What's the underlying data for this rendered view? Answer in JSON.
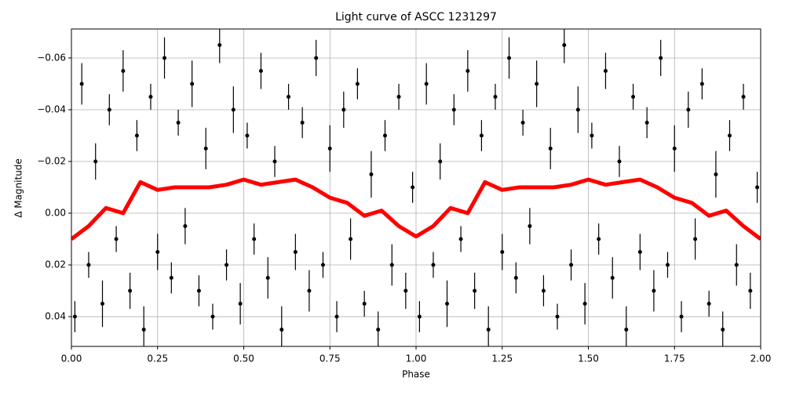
{
  "chart_data": {
    "type": "scatter",
    "title": "Light curve of ASCC 1231297",
    "xlabel": "Phase",
    "ylabel": "Δ Magnitude",
    "xlim": [
      0,
      2
    ],
    "ylim": [
      0.0515,
      -0.0712
    ],
    "inverted_y": true,
    "grid": true,
    "xticks": [
      {
        "value": 0,
        "label": "0.00"
      },
      0.25,
      {
        "value": 0.5,
        "label": "0.50"
      },
      0.75,
      {
        "value": 1,
        "label": "1.00"
      },
      1.25,
      {
        "value": 1.5,
        "label": "1.50"
      },
      1.75,
      {
        "value": 2,
        "label": "2.00"
      }
    ],
    "yticks": [
      {
        "value": -0.06,
        "label": "−0.06"
      },
      {
        "value": -0.04,
        "label": "−0.04"
      },
      {
        "value": -0.02,
        "label": "−0.02"
      },
      {
        "value": 0,
        "label": "0.00"
      },
      0.02,
      0.04
    ],
    "series": [
      {
        "color": "#000000",
        "x": [
          0.01,
          0.03,
          0.05,
          0.07,
          0.09,
          0.11,
          0.13,
          0.15,
          0.17,
          0.19,
          0.21,
          0.23,
          0.25,
          0.27,
          0.29,
          0.31,
          0.33,
          0.35,
          0.37,
          0.39,
          0.41,
          0.43,
          0.45,
          0.47,
          0.49,
          0.51,
          0.53,
          0.55,
          0.57,
          0.59,
          0.61,
          0.63,
          0.65,
          0.67,
          0.69,
          0.71,
          0.73,
          0.75,
          0.77,
          0.79,
          0.81,
          0.83,
          0.85,
          0.87,
          0.89,
          0.91,
          0.93,
          0.95,
          0.97,
          0.99,
          1.01,
          1.03,
          1.05,
          1.07,
          1.09,
          1.11,
          1.13,
          1.15,
          1.17,
          1.19,
          1.21,
          1.23,
          1.25,
          1.27,
          1.29,
          1.31,
          1.33,
          1.35,
          1.37,
          1.39,
          1.41,
          1.43,
          1.45,
          1.47,
          1.49,
          1.51,
          1.53,
          1.55,
          1.57,
          1.59,
          1.61,
          1.63,
          1.65,
          1.67,
          1.69,
          1.71,
          1.73,
          1.75,
          1.77,
          1.79,
          1.81,
          1.83,
          1.85,
          1.87,
          1.89,
          1.91,
          1.93,
          1.95,
          1.97,
          1.99
        ],
        "values": [
          0.04,
          -0.05,
          0.02,
          -0.02,
          0.035,
          -0.04,
          0.01,
          -0.055,
          0.03,
          -0.03,
          0.045,
          -0.045,
          0.015,
          -0.06,
          0.025,
          -0.035,
          0.005,
          -0.05,
          0.03,
          -0.025,
          0.04,
          -0.065,
          0.02,
          -0.04,
          0.035,
          -0.03,
          0.01,
          -0.055,
          0.025,
          -0.02,
          0.045,
          -0.045,
          0.015,
          -0.035,
          0.03,
          -0.06,
          0.02,
          -0.025,
          0.04,
          -0.04,
          0.01,
          -0.05,
          0.035,
          -0.015,
          0.045,
          -0.03,
          0.02,
          -0.045,
          0.03,
          -0.01,
          0.04,
          -0.05,
          0.02,
          -0.02,
          0.035,
          -0.04,
          0.01,
          -0.055,
          0.03,
          -0.03,
          0.045,
          -0.045,
          0.015,
          -0.06,
          0.025,
          -0.035,
          0.005,
          -0.05,
          0.03,
          -0.025,
          0.04,
          -0.065,
          0.02,
          -0.04,
          0.035,
          -0.03,
          0.01,
          -0.055,
          0.025,
          -0.02,
          0.045,
          -0.045,
          0.015,
          -0.035,
          0.03,
          -0.06,
          0.02,
          -0.025,
          0.04,
          -0.04,
          0.01,
          -0.05,
          0.035,
          -0.015,
          0.045,
          -0.03,
          0.02,
          -0.045,
          0.03,
          -0.01
        ],
        "errors": [
          0.006,
          0.008,
          0.005,
          0.007,
          0.009,
          0.006,
          0.005,
          0.008,
          0.007,
          0.006,
          0.009,
          0.005,
          0.007,
          0.008,
          0.006,
          0.005,
          0.007,
          0.009,
          0.006,
          0.008,
          0.005,
          0.007,
          0.006,
          0.009,
          0.008,
          0.005,
          0.006,
          0.007,
          0.008,
          0.006,
          0.009,
          0.005,
          0.007,
          0.006,
          0.008,
          0.007,
          0.005,
          0.009,
          0.006,
          0.007,
          0.008,
          0.006,
          0.005,
          0.009,
          0.007,
          0.006,
          0.008,
          0.005,
          0.007,
          0.006,
          0.006,
          0.008,
          0.005,
          0.007,
          0.009,
          0.006,
          0.005,
          0.008,
          0.007,
          0.006,
          0.009,
          0.005,
          0.007,
          0.008,
          0.006,
          0.005,
          0.007,
          0.009,
          0.006,
          0.008,
          0.005,
          0.007,
          0.006,
          0.009,
          0.008,
          0.005,
          0.006,
          0.007,
          0.008,
          0.006,
          0.009,
          0.005,
          0.007,
          0.006,
          0.008,
          0.007,
          0.005,
          0.009,
          0.006,
          0.007,
          0.008,
          0.006,
          0.005,
          0.009,
          0.007,
          0.006,
          0.008,
          0.005,
          0.007,
          0.006
        ]
      },
      {
        "color": "#ff0000",
        "type": "line",
        "x": [
          0,
          0.05,
          0.1,
          0.15,
          0.2,
          0.25,
          0.3,
          0.35,
          0.4,
          0.45,
          0.5,
          0.55,
          0.6,
          0.65,
          0.7,
          0.75,
          0.8,
          0.85,
          0.9,
          0.95,
          1,
          1.05,
          1.1,
          1.15,
          1.2,
          1.25,
          1.3,
          1.35,
          1.4,
          1.45,
          1.5,
          1.55,
          1.6,
          1.65,
          1.7,
          1.75,
          1.8,
          1.85,
          1.9,
          1.95,
          2
        ],
        "values": [
          0.01,
          0.005,
          -0.002,
          0,
          -0.012,
          -0.009,
          -0.01,
          -0.01,
          -0.01,
          -0.011,
          -0.013,
          -0.011,
          -0.012,
          -0.013,
          -0.01,
          -0.006,
          -0.004,
          0.001,
          -0.001,
          0.005,
          0.009,
          0.005,
          -0.002,
          0,
          -0.012,
          -0.009,
          -0.01,
          -0.01,
          -0.01,
          -0.011,
          -0.013,
          -0.011,
          -0.012,
          -0.013,
          -0.01,
          -0.006,
          -0.004,
          0.001,
          -0.001,
          0.005,
          0.01
        ]
      }
    ]
  }
}
